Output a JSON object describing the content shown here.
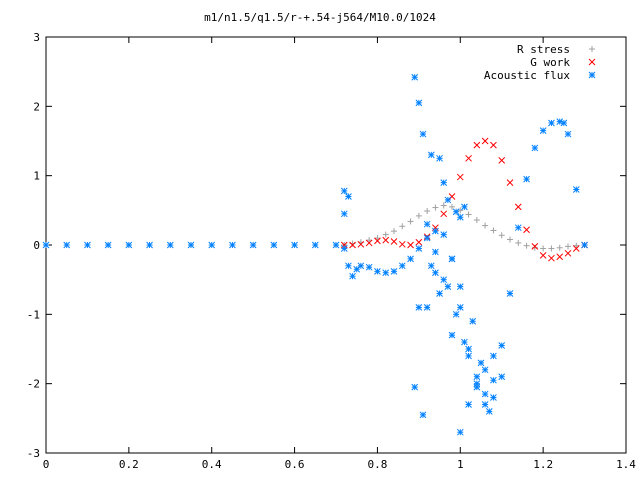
{
  "chart_data": {
    "type": "scatter",
    "title": "m1/n1.5/q1.5/r-+.54-j564/M10.0/1024",
    "xlabel": "",
    "ylabel": "",
    "xlim": [
      0,
      1.4
    ],
    "ylim": [
      -3,
      3
    ],
    "x_ticks": [
      "0",
      "0.2",
      "0.4",
      "0.6",
      "0.8",
      "1",
      "1.2",
      "1.4"
    ],
    "y_ticks": [
      "3",
      "2",
      "1",
      "0",
      "-1",
      "-2",
      "-3"
    ],
    "grid": false,
    "legend": "top-right",
    "series": [
      {
        "name": "R stress",
        "marker": "+",
        "color": "#a0a0a0",
        "x": [
          0.72,
          0.74,
          0.76,
          0.78,
          0.8,
          0.82,
          0.84,
          0.86,
          0.88,
          0.9,
          0.92,
          0.94,
          0.96,
          0.98,
          1.0,
          1.02,
          1.04,
          1.06,
          1.08,
          1.1,
          1.12,
          1.14,
          1.16,
          1.18,
          1.2,
          1.22,
          1.24,
          1.26,
          1.28,
          1.3
        ],
        "y": [
          0.0,
          0.02,
          0.04,
          0.07,
          0.1,
          0.15,
          0.2,
          0.27,
          0.34,
          0.42,
          0.49,
          0.54,
          0.57,
          0.55,
          0.5,
          0.44,
          0.36,
          0.28,
          0.21,
          0.14,
          0.08,
          0.03,
          -0.01,
          -0.04,
          -0.05,
          -0.05,
          -0.04,
          -0.02,
          -0.01,
          0.0
        ]
      },
      {
        "name": "G work",
        "marker": "x",
        "color": "#ff0000",
        "x": [
          0.72,
          0.74,
          0.76,
          0.78,
          0.8,
          0.82,
          0.84,
          0.86,
          0.88,
          0.9,
          0.92,
          0.94,
          0.96,
          0.98,
          1.0,
          1.02,
          1.04,
          1.06,
          1.08,
          1.1,
          1.12,
          1.14,
          1.16,
          1.18,
          1.2,
          1.22,
          1.24,
          1.26,
          1.28,
          1.3
        ],
        "y": [
          0.0,
          0.0,
          0.01,
          0.03,
          0.06,
          0.07,
          0.05,
          0.01,
          0.0,
          0.04,
          0.12,
          0.25,
          0.45,
          0.7,
          0.98,
          1.25,
          1.44,
          1.5,
          1.44,
          1.22,
          0.9,
          0.55,
          0.22,
          -0.02,
          -0.15,
          -0.19,
          -0.17,
          -0.12,
          -0.05,
          0.0
        ]
      },
      {
        "name": "Acoustic flux",
        "marker": "*",
        "color": "#0080ff",
        "x": [
          0.0,
          0.05,
          0.1,
          0.15,
          0.2,
          0.25,
          0.3,
          0.35,
          0.4,
          0.45,
          0.5,
          0.55,
          0.6,
          0.65,
          0.7,
          0.72,
          0.73,
          0.74,
          0.75,
          0.76,
          0.78,
          0.8,
          0.82,
          0.84,
          0.86,
          0.88,
          0.9,
          0.92,
          0.94,
          0.96,
          0.98,
          1.0,
          1.02,
          1.04,
          1.06,
          1.08,
          1.1,
          1.12,
          1.14,
          1.16,
          1.18,
          1.2,
          1.22,
          1.24,
          1.25,
          1.26,
          1.28,
          1.3,
          0.89,
          0.9,
          0.91,
          0.89,
          0.91,
          0.92,
          0.93,
          0.95,
          0.96,
          0.97,
          0.99,
          1.0,
          1.01,
          0.72,
          0.72,
          0.73,
          0.9,
          0.94,
          0.98,
          1.0,
          1.02,
          1.04,
          1.06,
          1.08,
          0.93,
          0.95,
          0.97,
          0.99,
          1.01,
          1.03,
          1.05,
          1.07,
          0.92,
          0.94,
          0.96,
          0.98,
          1.0,
          1.02,
          1.04,
          1.06,
          1.08,
          1.1
        ],
        "y": [
          0.0,
          0.0,
          0.0,
          0.0,
          0.0,
          0.0,
          0.0,
          0.0,
          0.0,
          0.0,
          0.0,
          0.0,
          0.0,
          0.0,
          0.0,
          -0.05,
          -0.3,
          -0.45,
          -0.35,
          -0.3,
          -0.32,
          -0.38,
          -0.4,
          -0.38,
          -0.3,
          -0.2,
          -0.05,
          0.1,
          0.2,
          0.15,
          -0.2,
          -0.9,
          -1.6,
          -2.05,
          -2.15,
          -1.95,
          -1.45,
          -0.7,
          0.25,
          0.95,
          1.4,
          1.65,
          1.76,
          1.78,
          1.76,
          1.6,
          0.8,
          0.0,
          2.42,
          2.05,
          1.6,
          -2.05,
          -2.45,
          -0.9,
          1.3,
          1.25,
          0.9,
          0.65,
          0.48,
          0.4,
          0.55,
          0.78,
          0.45,
          0.7,
          -0.9,
          -0.4,
          -1.3,
          -2.7,
          -2.3,
          -2.0,
          -1.8,
          -1.6,
          -0.3,
          -0.7,
          -0.6,
          -1.0,
          -1.4,
          -1.1,
          -1.7,
          -2.4,
          0.3,
          -0.1,
          -0.5,
          -0.2,
          -0.6,
          -1.5,
          -1.9,
          -2.3,
          -2.2,
          -1.9
        ]
      }
    ]
  }
}
